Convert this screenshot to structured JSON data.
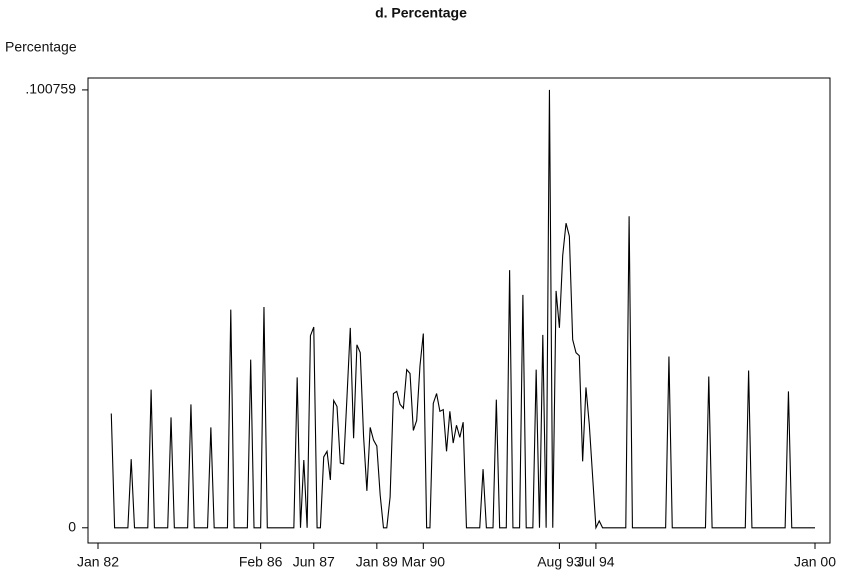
{
  "chart_data": {
    "type": "line",
    "title": "d. Percentage",
    "y_label": "Percentage",
    "xlim": [
      "1982-01",
      "2000-01"
    ],
    "xticks": [
      {
        "value": "1982-01",
        "label": "Jan 82"
      },
      {
        "value": "1986-02",
        "label": "Feb 86"
      },
      {
        "value": "1987-06",
        "label": "Jun 87"
      },
      {
        "value": "1989-01",
        "label": "Jan 89"
      },
      {
        "value": "1990-03",
        "label": "Mar 90"
      },
      {
        "value": "1993-08",
        "label": "Aug 93"
      },
      {
        "value": "1994-07",
        "label": "Jul 94"
      },
      {
        "value": "2000-01",
        "label": "Jan 00"
      }
    ],
    "ylim": [
      -0.0035,
      0.1035
    ],
    "yticks": [
      0,
      {
        "value": 0.100759,
        "label": ".100759"
      }
    ],
    "color": "#000000",
    "x": [
      "1982-05",
      "1982-06",
      "1982-10",
      "1982-11",
      "1982-12",
      "1983-04",
      "1983-05",
      "1983-06",
      "1983-10",
      "1983-11",
      "1983-12",
      "1984-04",
      "1984-05",
      "1984-06",
      "1984-10",
      "1984-11",
      "1984-12",
      "1985-04",
      "1985-05",
      "1985-06",
      "1985-10",
      "1985-11",
      "1985-12",
      "1986-02",
      "1986-03",
      "1986-04",
      "1986-12",
      "1987-01",
      "1987-02",
      "1987-03",
      "1987-04",
      "1987-05",
      "1987-06",
      "1987-07",
      "1987-08",
      "1987-09",
      "1987-10",
      "1987-11",
      "1987-12",
      "1988-01",
      "1988-02",
      "1988-03",
      "1988-04",
      "1988-05",
      "1988-06",
      "1988-07",
      "1988-08",
      "1988-09",
      "1988-10",
      "1988-11",
      "1988-12",
      "1989-01",
      "1989-02",
      "1989-03",
      "1989-04",
      "1989-05",
      "1989-06",
      "1989-07",
      "1989-08",
      "1989-09",
      "1989-10",
      "1989-11",
      "1989-12",
      "1990-01",
      "1990-02",
      "1990-03",
      "1990-04",
      "1990-05",
      "1990-06",
      "1990-07",
      "1990-08",
      "1990-09",
      "1990-10",
      "1990-11",
      "1990-12",
      "1991-01",
      "1991-02",
      "1991-03",
      "1991-04",
      "1991-08",
      "1991-09",
      "1991-10",
      "1991-12",
      "1992-01",
      "1992-02",
      "1992-04",
      "1992-05",
      "1992-06",
      "1992-08",
      "1992-09",
      "1992-10",
      "1992-12",
      "1993-01",
      "1993-02",
      "1993-03",
      "1993-04",
      "1993-05",
      "1993-06",
      "1993-07",
      "1993-08",
      "1993-09",
      "1993-10",
      "1993-11",
      "1993-12",
      "1994-01",
      "1994-02",
      "1994-03",
      "1994-04",
      "1994-05",
      "1994-07",
      "1994-08",
      "1994-09",
      "1995-04",
      "1995-05",
      "1995-06",
      "1996-04",
      "1996-05",
      "1996-06",
      "1997-04",
      "1997-05",
      "1997-06",
      "1998-04",
      "1998-05",
      "1998-06",
      "1999-04",
      "1999-05",
      "1999-06",
      "2000-01"
    ],
    "values": [
      0.0263,
      0,
      0,
      0.0158,
      0,
      0,
      0.0318,
      0,
      0,
      0.0254,
      0,
      0,
      0.0284,
      0,
      0,
      0.0231,
      0,
      0,
      0.0502,
      0,
      0,
      0.0387,
      0,
      0,
      0.0508,
      0,
      0,
      0.0346,
      0,
      0.0156,
      0,
      0.0442,
      0.0462,
      0,
      0,
      0.0163,
      0.0176,
      0.011,
      0.0293,
      0.0279,
      0.0149,
      0.0147,
      0.03,
      0.046,
      0.0206,
      0.0421,
      0.0403,
      0.0211,
      0.0085,
      0.0231,
      0.0202,
      0.0188,
      0.0076,
      0,
      0,
      0.0071,
      0.0309,
      0.0314,
      0.0284,
      0.0275,
      0.0364,
      0.0355,
      0.0224,
      0.0247,
      0.0373,
      0.0447,
      0,
      0,
      0.0286,
      0.0309,
      0.0268,
      0.0272,
      0.0176,
      0.0268,
      0.0195,
      0.0236,
      0.0208,
      0.0243,
      0,
      0,
      0.0135,
      0,
      0,
      0.0295,
      0,
      0,
      0.0593,
      0,
      0,
      0.0536,
      0,
      0,
      0.0364,
      0,
      0.0444,
      0,
      0.100759,
      0,
      0.0545,
      0.046,
      0.0627,
      0.0701,
      0.0671,
      0.0433,
      0.0403,
      0.0396,
      0.0153,
      0.0323,
      0.0238,
      0,
      0.0016,
      0,
      0,
      0.0717,
      0,
      0,
      0.0394,
      0,
      0,
      0.0348,
      0,
      0,
      0.0362,
      0,
      0,
      0.0314,
      0,
      0
    ]
  }
}
